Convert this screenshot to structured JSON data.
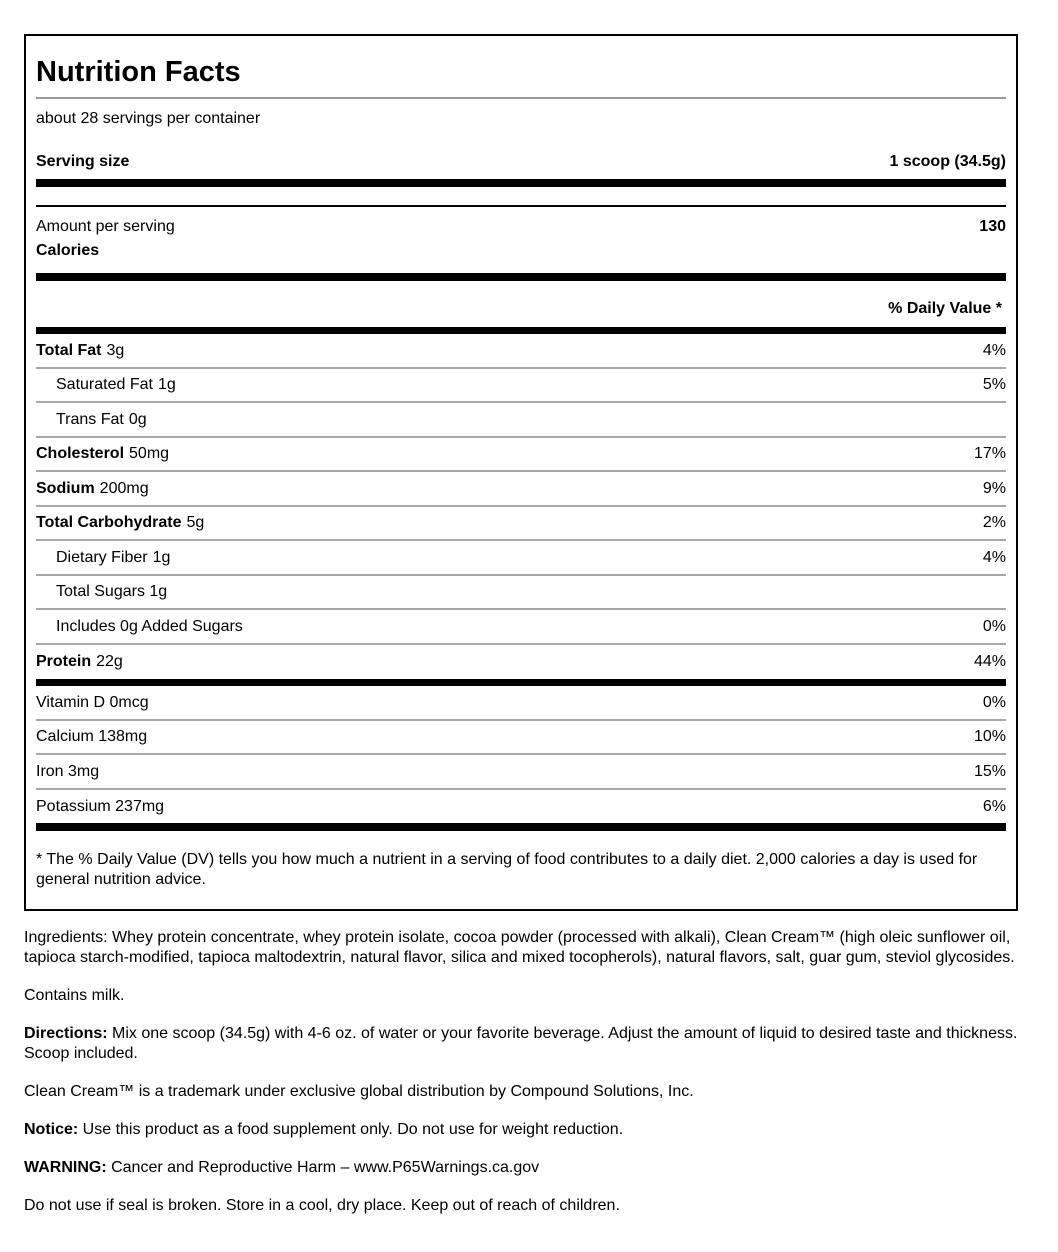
{
  "title": "Nutrition Facts",
  "servings_per_container": "about 28 servings per container",
  "serving_size": {
    "label": "Serving size",
    "value": "1 scoop (34.5g)"
  },
  "amount_per_serving": "Amount per serving",
  "calories": {
    "label": "Calories",
    "value": "130"
  },
  "daily_value_header": "% Daily Value *",
  "nutrients": [
    {
      "name": "Total Fat",
      "amount": "3g",
      "dv": "4%",
      "bold": true
    },
    {
      "name": "Saturated Fat",
      "amount": "1g",
      "dv": "5%",
      "indent": true
    },
    {
      "name": "Trans Fat",
      "amount": "0g",
      "dv": "",
      "indent": true
    },
    {
      "name": "Cholesterol",
      "amount": "50mg",
      "dv": "17%",
      "bold": true
    },
    {
      "name": "Sodium",
      "amount": "200mg",
      "dv": "9%",
      "bold": true
    },
    {
      "name": "Total Carbohydrate",
      "amount": "5g",
      "dv": "2%",
      "bold": true
    },
    {
      "name": "Dietary Fiber",
      "amount": "1g",
      "dv": "4%",
      "indent": true
    },
    {
      "name": "Total Sugars 1g",
      "amount": "",
      "dv": "",
      "indent": true
    },
    {
      "name": "Includes 0g Added Sugars",
      "amount": "",
      "dv": "0%",
      "indent": true
    },
    {
      "name": "Protein",
      "amount": "22g",
      "dv": "44%",
      "bold": true
    }
  ],
  "vitamins": [
    {
      "name": "Vitamin D 0mcg",
      "dv": "0%"
    },
    {
      "name": "Calcium 138mg",
      "dv": "10%"
    },
    {
      "name": "Iron 3mg",
      "dv": "15%"
    },
    {
      "name": "Potassium 237mg",
      "dv": "6%"
    }
  ],
  "footnote": "* The % Daily Value (DV) tells you how much a nutrient in a serving of food contributes to a daily diet. 2,000 calories a day is used for general nutrition advice.",
  "below": {
    "ingredients": "Ingredients: Whey protein concentrate, whey protein isolate, cocoa powder (processed with alkali), Clean Cream™ (high oleic sunflower oil, tapioca starch-modified, tapioca maltodextrin, natural flavor, silica and mixed tocopherols), natural flavors, salt, guar gum, steviol glycosides.",
    "contains": "Contains milk.",
    "directions_label": "Directions:",
    "directions": " Mix one scoop (34.5g) with 4-6 oz. of water or your favorite beverage. Adjust the amount of liquid to desired taste and thickness. Scoop included.",
    "trademark": "Clean Cream™ is a trademark under exclusive global distribution by Compound Solutions, Inc.",
    "notice_label": "Notice:",
    "notice": " Use this product as a food supplement only. Do not use for weight reduction.",
    "warning_label": "WARNING:",
    "warning": " Cancer and Reproductive Harm – www.P65Warnings.ca.gov",
    "storage": "Do not use if seal is broken. Store in a cool, dry place. Keep out of reach of children."
  }
}
